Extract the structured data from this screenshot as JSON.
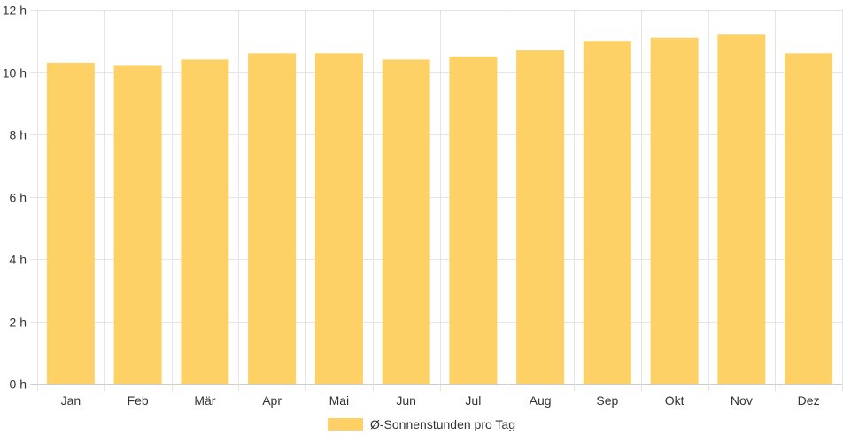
{
  "chart_data": {
    "type": "bar",
    "categories": [
      "Jan",
      "Feb",
      "Mär",
      "Apr",
      "Mai",
      "Jun",
      "Jul",
      "Aug",
      "Sep",
      "Okt",
      "Nov",
      "Dez"
    ],
    "series": [
      {
        "name": "Ø-Sonnenstunden pro Tag",
        "values": [
          10.3,
          10.2,
          10.4,
          10.6,
          10.6,
          10.4,
          10.5,
          10.7,
          11.0,
          11.1,
          11.2,
          10.6
        ]
      }
    ],
    "ylim": [
      0,
      12
    ],
    "yticks": [
      0,
      2,
      4,
      6,
      8,
      10,
      12
    ],
    "ytick_suffix": " h",
    "grid": true,
    "legend_position": "bottom-center"
  },
  "colors": {
    "bar": "#fdd166",
    "grid": "#e5e5e5",
    "axis": "#cccccc",
    "text": "#333333"
  }
}
